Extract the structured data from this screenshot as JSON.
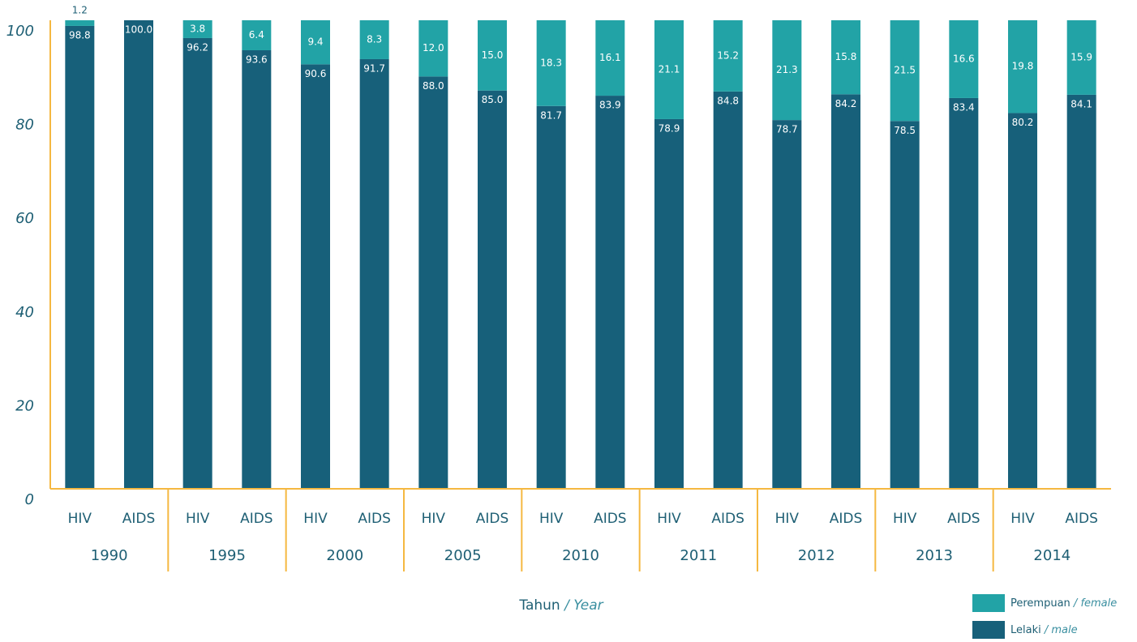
{
  "chart_data": {
    "type": "bar",
    "stacked": true,
    "categories": [
      "HIV",
      "AIDS",
      "HIV",
      "AIDS",
      "HIV",
      "AIDS",
      "HIV",
      "AIDS",
      "HIV",
      "AIDS",
      "HIV",
      "AIDS",
      "HIV",
      "AIDS",
      "HIV",
      "AIDS",
      "HIV",
      "AIDS"
    ],
    "groups": [
      "1990",
      "1995",
      "2000",
      "2005",
      "2010",
      "2011",
      "2012",
      "2013",
      "2014"
    ],
    "xlabel": "Tahun / Year",
    "ylim": [
      0,
      100
    ],
    "yticks": [
      0,
      20,
      40,
      60,
      80,
      100
    ],
    "series": [
      {
        "name": "Lelaki / male",
        "color": "#17607a",
        "values": [
          98.8,
          100.0,
          96.2,
          93.6,
          90.6,
          91.7,
          88.0,
          85.0,
          81.7,
          83.9,
          78.9,
          84.8,
          78.7,
          84.2,
          78.5,
          83.4,
          80.2,
          84.1
        ],
        "value_labels": [
          "98.8",
          "100.0",
          "96.2",
          "93.6",
          "90.6",
          "91.7",
          "88.0",
          "85.0",
          "81.7",
          "83.9",
          "78.9",
          "84.8",
          "78.7",
          "84.2",
          "78.5",
          "83.4",
          "80.2",
          "84.1"
        ]
      },
      {
        "name": "Perempuan / female",
        "color": "#22a3a6",
        "values": [
          1.2,
          0,
          3.8,
          6.4,
          9.4,
          8.3,
          12.0,
          15.0,
          18.3,
          16.1,
          21.1,
          15.2,
          21.3,
          15.8,
          21.5,
          16.6,
          19.8,
          15.9
        ],
        "value_labels": [
          "1.2",
          null,
          "3.8",
          "6.4",
          "9.4",
          "8.3",
          "12.0",
          "15.0",
          "18.3",
          "16.1",
          "21.1",
          "15.2",
          "21.3",
          "15.8",
          "21.5",
          "16.6",
          "19.8",
          "15.9"
        ]
      }
    ]
  }
}
